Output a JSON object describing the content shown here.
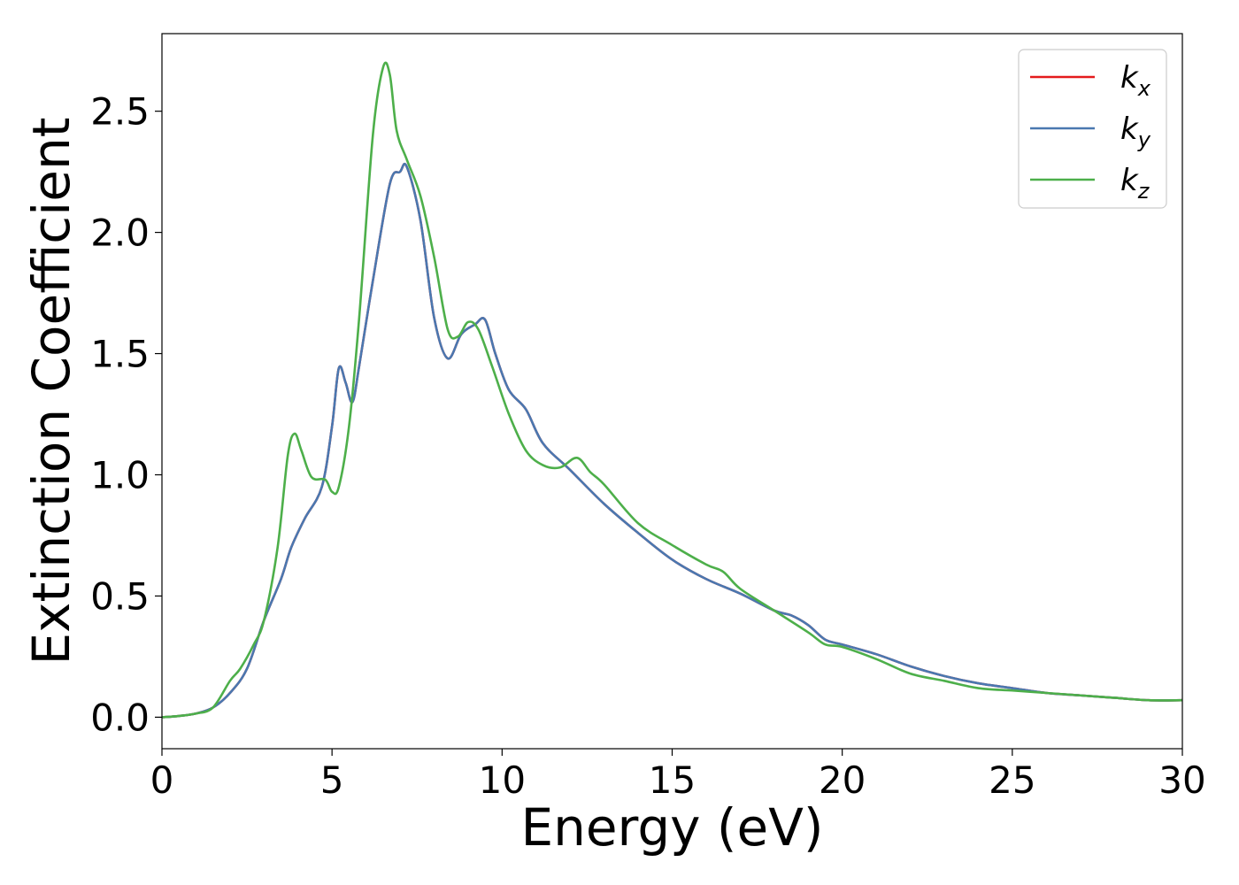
{
  "chart_data": {
    "type": "line",
    "xlabel": "Energy (eV)",
    "ylabel": "Extinction Coefficient",
    "xlim": [
      0,
      30
    ],
    "ylim": [
      -0.13,
      2.82
    ],
    "xticks": [
      0,
      5,
      10,
      15,
      20,
      25,
      30
    ],
    "xtick_labels": [
      "0",
      "5",
      "10",
      "15",
      "20",
      "25",
      "30"
    ],
    "yticks": [
      0.0,
      0.5,
      1.0,
      1.5,
      2.0,
      2.5
    ],
    "ytick_labels": [
      "0.0",
      "0.5",
      "1.0",
      "1.5",
      "2.0",
      "2.5"
    ],
    "grid": false,
    "legend_position": "top-right",
    "series": [
      {
        "name": "k",
        "subscript": "x",
        "color": "#e41a1c",
        "x": [
          0,
          0.5,
          1.0,
          1.5,
          2.0,
          2.5,
          3.0,
          3.5,
          3.8,
          4.2,
          4.7,
          5.0,
          5.2,
          5.4,
          5.6,
          5.8,
          6.2,
          6.7,
          7.0,
          7.2,
          7.6,
          8.0,
          8.4,
          8.8,
          9.2,
          9.5,
          9.8,
          10.2,
          10.7,
          11.2,
          12.0,
          13.0,
          14.0,
          15.0,
          16.0,
          17.0,
          18.0,
          18.5,
          19.0,
          19.5,
          20.0,
          21.0,
          22.0,
          23.0,
          24.0,
          25.0,
          26.0,
          27.0,
          28.0,
          29.0,
          30.0
        ],
        "y": [
          0.0,
          0.005,
          0.015,
          0.04,
          0.1,
          0.2,
          0.4,
          0.57,
          0.7,
          0.82,
          0.95,
          1.2,
          1.44,
          1.38,
          1.3,
          1.45,
          1.8,
          2.2,
          2.25,
          2.27,
          2.05,
          1.65,
          1.48,
          1.58,
          1.62,
          1.64,
          1.5,
          1.35,
          1.27,
          1.13,
          1.02,
          0.88,
          0.76,
          0.65,
          0.57,
          0.51,
          0.44,
          0.42,
          0.38,
          0.32,
          0.3,
          0.26,
          0.21,
          0.17,
          0.14,
          0.12,
          0.1,
          0.09,
          0.08,
          0.07,
          0.07
        ]
      },
      {
        "name": "k",
        "subscript": "y",
        "color": "#4a78b0",
        "x": [
          0,
          0.5,
          1.0,
          1.5,
          2.0,
          2.5,
          3.0,
          3.5,
          3.8,
          4.2,
          4.7,
          5.0,
          5.2,
          5.4,
          5.6,
          5.8,
          6.2,
          6.7,
          7.0,
          7.2,
          7.6,
          8.0,
          8.4,
          8.8,
          9.2,
          9.5,
          9.8,
          10.2,
          10.7,
          11.2,
          12.0,
          13.0,
          14.0,
          15.0,
          16.0,
          17.0,
          18.0,
          18.5,
          19.0,
          19.5,
          20.0,
          21.0,
          22.0,
          23.0,
          24.0,
          25.0,
          26.0,
          27.0,
          28.0,
          29.0,
          30.0
        ],
        "y": [
          0.0,
          0.005,
          0.015,
          0.04,
          0.1,
          0.2,
          0.4,
          0.57,
          0.7,
          0.82,
          0.95,
          1.2,
          1.44,
          1.38,
          1.3,
          1.45,
          1.8,
          2.2,
          2.25,
          2.27,
          2.05,
          1.65,
          1.48,
          1.58,
          1.62,
          1.64,
          1.5,
          1.35,
          1.27,
          1.13,
          1.02,
          0.88,
          0.76,
          0.65,
          0.57,
          0.51,
          0.44,
          0.42,
          0.38,
          0.32,
          0.3,
          0.26,
          0.21,
          0.17,
          0.14,
          0.12,
          0.1,
          0.09,
          0.08,
          0.07,
          0.07
        ]
      },
      {
        "name": "k",
        "subscript": "z",
        "color": "#4daf4a",
        "x": [
          0,
          0.5,
          1.0,
          1.5,
          2.0,
          2.3,
          2.7,
          3.0,
          3.4,
          3.7,
          3.9,
          4.1,
          4.4,
          4.8,
          5.0,
          5.2,
          5.5,
          5.8,
          6.2,
          6.5,
          6.7,
          6.9,
          7.2,
          7.6,
          8.0,
          8.4,
          8.7,
          9.0,
          9.3,
          9.7,
          10.2,
          10.7,
          11.2,
          11.7,
          12.2,
          12.6,
          13.0,
          14.0,
          15.0,
          16.0,
          16.5,
          17.0,
          18.0,
          19.0,
          19.5,
          20.0,
          21.0,
          22.0,
          23.0,
          24.0,
          25.0,
          26.0,
          27.0,
          28.0,
          29.0,
          30.0
        ],
        "y": [
          0.0,
          0.005,
          0.015,
          0.04,
          0.15,
          0.2,
          0.3,
          0.4,
          0.7,
          1.08,
          1.17,
          1.1,
          0.99,
          0.98,
          0.93,
          0.95,
          1.2,
          1.65,
          2.4,
          2.68,
          2.65,
          2.42,
          2.3,
          2.15,
          1.9,
          1.6,
          1.57,
          1.63,
          1.6,
          1.45,
          1.25,
          1.1,
          1.04,
          1.03,
          1.07,
          1.01,
          0.96,
          0.8,
          0.71,
          0.63,
          0.6,
          0.53,
          0.44,
          0.35,
          0.3,
          0.29,
          0.24,
          0.18,
          0.15,
          0.12,
          0.11,
          0.1,
          0.09,
          0.08,
          0.07,
          0.07
        ]
      }
    ]
  }
}
